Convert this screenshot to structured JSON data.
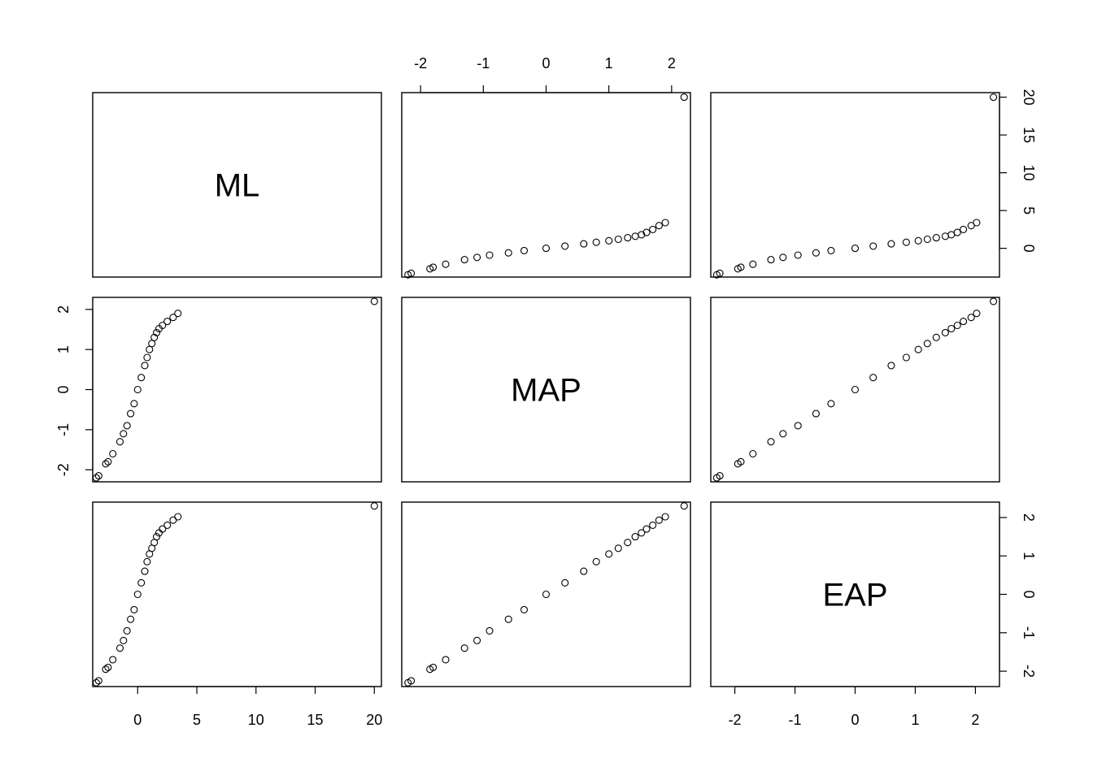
{
  "chart_data": {
    "type": "scatter",
    "title": "",
    "variables": [
      "ML",
      "MAP",
      "EAP"
    ],
    "note": "Scatterplot matrix (pairs plot); points approximated from the visible pattern.",
    "axes": {
      "ML": {
        "range": [
          -3.8,
          20.6
        ],
        "ticks": [
          0,
          5,
          10,
          15,
          20
        ],
        "tick_labels": [
          "0",
          "5",
          "10",
          "15",
          "20"
        ]
      },
      "MAP": {
        "range": [
          -2.3,
          2.3
        ],
        "ticks": [
          -2,
          -1,
          0,
          1,
          2
        ],
        "tick_labels": [
          "-2",
          "-1",
          "0",
          "1",
          "2"
        ]
      },
      "EAP": {
        "range": [
          -2.4,
          2.4
        ],
        "ticks": [
          -2,
          -1,
          0,
          1,
          2
        ],
        "tick_labels": [
          "-2",
          "-1",
          "0",
          "1",
          "2"
        ]
      }
    },
    "axis_placement": {
      "top": [
        {
          "column": 1,
          "variable": "MAP"
        }
      ],
      "right": [
        {
          "row": 0,
          "variable": "ML"
        },
        {
          "row": 2,
          "variable": "EAP"
        }
      ],
      "left": [
        {
          "row": 1,
          "variable": "MAP"
        }
      ],
      "bottom": [
        {
          "column": 0,
          "variable": "ML"
        },
        {
          "column": 2,
          "variable": "EAP"
        }
      ]
    },
    "points": {
      "ML": [
        -3.5,
        -3.3,
        -2.7,
        -2.5,
        -2.1,
        -1.5,
        -1.2,
        -0.9,
        -0.6,
        -0.3,
        0.0,
        0.3,
        0.6,
        0.8,
        1.0,
        1.2,
        1.4,
        1.6,
        1.8,
        2.1,
        2.5,
        3.0,
        3.4,
        20.0
      ],
      "MAP": [
        -2.2,
        -2.15,
        -1.85,
        -1.8,
        -1.6,
        -1.3,
        -1.1,
        -0.9,
        -0.6,
        -0.35,
        0.0,
        0.3,
        0.6,
        0.8,
        1.0,
        1.15,
        1.3,
        1.42,
        1.52,
        1.6,
        1.7,
        1.8,
        1.9,
        2.2
      ],
      "EAP": [
        -2.3,
        -2.25,
        -1.95,
        -1.9,
        -1.7,
        -1.4,
        -1.2,
        -0.95,
        -0.65,
        -0.4,
        0.0,
        0.3,
        0.6,
        0.85,
        1.05,
        1.2,
        1.35,
        1.5,
        1.6,
        1.7,
        1.8,
        1.93,
        2.02,
        2.3
      ]
    }
  }
}
